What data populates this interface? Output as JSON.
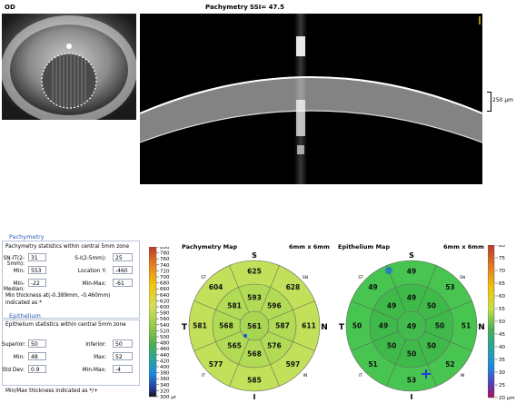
{
  "header": {
    "eye": "OD",
    "title": "Pachymetry",
    "ssi": "SSI= 47.5"
  },
  "scale": {
    "label": "250 µm"
  },
  "pachymetry": {
    "section_title": "Pachymetry",
    "subtitle": "Pachymetry statistics within central 5mm zone",
    "sn_it_label": "SN-IT(2-5mm):",
    "sn_it": "31",
    "s_i_label": "S-I(2-5mm):",
    "s_i": "25",
    "min_label": "Min:",
    "min": "553",
    "loc_y_label": "Location Y:",
    "loc_y": "-460",
    "min_median_label": "Min-Median:",
    "min_median": "-22",
    "min_max_label": "Min-Max:",
    "min_max": "-61",
    "note": "Min thickness at(-0.389mm, -0.460mm) indicated as *"
  },
  "epithelium": {
    "section_title": "Epithelium",
    "subtitle": "Epithelium statistics within central 5mm zone",
    "superior_label": "Superior:",
    "superior": "50",
    "inferior_label": "Inferior:",
    "inferior": "50",
    "min_label": "Min:",
    "min": "48",
    "max_label": "Max:",
    "max": "52",
    "std_label": "Std Dev:",
    "std": "0.9",
    "min_max_label": "Min-Max:",
    "min_max": "-4",
    "note": "Min/Max thickness indicated as */+"
  },
  "pachy_scale": [
    "800",
    "780",
    "760",
    "740",
    "720",
    "700",
    "680",
    "660",
    "640",
    "620",
    "600",
    "580",
    "560",
    "540",
    "520",
    "500",
    "480",
    "460",
    "440",
    "420",
    "400",
    "380",
    "360",
    "340",
    "320",
    "300 µm"
  ],
  "epi_scale": [
    "80",
    "75",
    "70",
    "65",
    "60",
    "55",
    "50",
    "45",
    "40",
    "35",
    "30",
    "25",
    "20 µm"
  ],
  "pachy_map": {
    "title": "Pachymetry Map",
    "size": "6mm x 6mm",
    "S": "S",
    "I": "I",
    "T": "T",
    "N": "N",
    "ST": "ST",
    "SN": "SN",
    "IT": "IT",
    "IN": "IN",
    "center": "561",
    "inner": {
      "s": "593",
      "sn": "596",
      "n": "587",
      "in": "576",
      "i": "568",
      "it": "565",
      "t": "568",
      "st": "581"
    },
    "outer": {
      "s": "625",
      "sn": "628",
      "n": "611",
      "in": "597",
      "i": "585",
      "it": "577",
      "t": "581",
      "st": "604"
    },
    "colors": {
      "outer": "#c2e05a",
      "inner": "#b2db55",
      "center": "#a8d653"
    }
  },
  "epi_map": {
    "title": "Epithelium Map",
    "size": "6mm x 6mm",
    "S": "S",
    "I": "I",
    "T": "T",
    "N": "N",
    "ST": "ST",
    "SN": "SN",
    "IT": "IT",
    "IN": "IN",
    "center": "49",
    "inner": {
      "s": "49",
      "sn": "50",
      "n": "50",
      "in": "50",
      "i": "50",
      "it": "50",
      "t": "49",
      "st": "49"
    },
    "outer": {
      "s": "49",
      "sn": "53",
      "n": "51",
      "in": "52",
      "i": "53",
      "it": "51",
      "t": "50",
      "st": "49"
    },
    "colors": {
      "outer": "#48c450",
      "inner": "#3fba4a",
      "center": "#42bb4c"
    }
  }
}
